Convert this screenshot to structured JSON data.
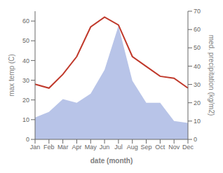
{
  "chart_data": {
    "type": "line",
    "categories": [
      "Jan",
      "Feb",
      "Mar",
      "Apr",
      "May",
      "Jun",
      "Jul",
      "Aug",
      "Sep",
      "Oct",
      "Nov",
      "Dec"
    ],
    "xlabel": "date (month)",
    "ylabel": "max temp (C)",
    "y2label": "med. precipitation (kg/m2)",
    "ylim": [
      0,
      65
    ],
    "yticks": [
      0,
      10,
      20,
      30,
      40,
      50,
      60
    ],
    "y2lim": [
      0,
      70
    ],
    "y2ticks": [
      0,
      10,
      20,
      30,
      40,
      50,
      60,
      70
    ],
    "grid": false,
    "series": [
      {
        "type": "area",
        "axis": "y2",
        "color": "#b8c4e8",
        "values": [
          12,
          15,
          22,
          20,
          25,
          38,
          62,
          32,
          20,
          20,
          10,
          9
        ]
      },
      {
        "type": "line",
        "color": "#c0392b",
        "values": [
          28,
          26,
          33,
          42,
          57,
          62,
          58,
          42,
          37,
          32,
          31,
          26
        ]
      }
    ]
  }
}
